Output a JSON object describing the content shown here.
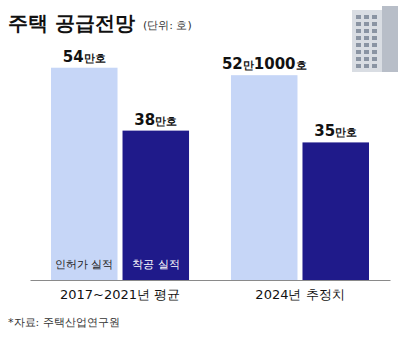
{
  "chart_data": {
    "type": "bar",
    "title": "주택 공급전망",
    "subtitle": "(단위: 호)",
    "source": "*자료: 주택산업연구원",
    "categories": [
      "2017~2021년 평균",
      "2024년 추정치"
    ],
    "series": [
      {
        "name": "인허가 실적",
        "color": "#c6d6f7",
        "values": [
          540000,
          521000
        ],
        "value_labels": [
          "54만호",
          "52만1000호"
        ]
      },
      {
        "name": "착공 실적",
        "color": "#1f1a8a",
        "values": [
          380000,
          350000
        ],
        "value_labels": [
          "38만호",
          "35만호"
        ]
      }
    ],
    "ylim": [
      0,
      580000
    ],
    "grid": false,
    "data_labels": true,
    "tick_labels": "x"
  }
}
